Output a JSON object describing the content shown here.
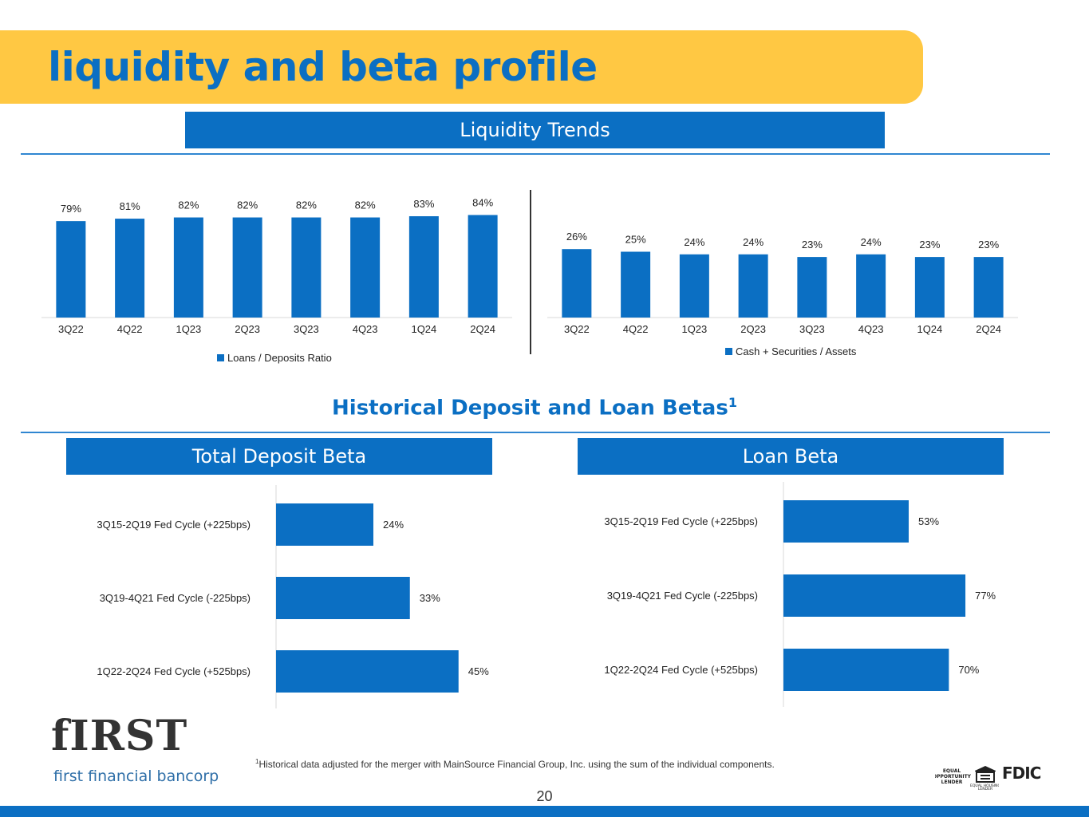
{
  "page": {
    "title": "liquidity and beta profile",
    "section1_title": "Liquidity Trends",
    "section2_title": "Historical Deposit and Loan Betas",
    "section2_sup": "1",
    "footnote_sup": "1",
    "footnote": "Historical data adjusted for the merger with MainSource Financial Group, Inc. using the sum of the individual components.",
    "page_number": "20",
    "logo_word": "fIRST",
    "logo_sub": "first financial bancorp",
    "eol_label": "EQUAL OPPORTUNITY LENDER",
    "equal_housing_label": "EQUAL HOUSING LENDER",
    "fdic_label": "FDIC",
    "colors": {
      "brand_blue": "#0B6FC3",
      "title_band": "#FFC843"
    }
  },
  "chart_data": [
    {
      "type": "bar",
      "categories": [
        "3Q22",
        "4Q22",
        "1Q23",
        "2Q23",
        "3Q23",
        "4Q23",
        "1Q24",
        "2Q24"
      ],
      "series": [
        {
          "name": "Loans / Deposits Ratio",
          "values": [
            79,
            81,
            82,
            82,
            82,
            82,
            83,
            84
          ]
        }
      ],
      "data_labels": [
        "79%",
        "81%",
        "82%",
        "82%",
        "82%",
        "82%",
        "83%",
        "84%"
      ],
      "ylim": [
        0,
        100
      ],
      "legend": "bottom",
      "grid": false
    },
    {
      "type": "bar",
      "categories": [
        "3Q22",
        "4Q22",
        "1Q23",
        "2Q23",
        "3Q23",
        "4Q23",
        "1Q24",
        "2Q24"
      ],
      "series": [
        {
          "name": "Cash + Securities / Assets",
          "values": [
            26,
            25,
            24,
            24,
            23,
            24,
            23,
            23
          ]
        }
      ],
      "data_labels": [
        "26%",
        "25%",
        "24%",
        "24%",
        "23%",
        "24%",
        "23%",
        "23%"
      ],
      "ylim": [
        0,
        30
      ],
      "legend": "bottom",
      "grid": false
    },
    {
      "type": "bar",
      "orientation": "horizontal",
      "title": "Total Deposit Beta",
      "categories": [
        "3Q15-2Q19 Fed Cycle (+225bps)",
        "3Q19-4Q21 Fed Cycle (-225bps)",
        "1Q22-2Q24 Fed Cycle (+525bps)"
      ],
      "values": [
        24,
        33,
        45
      ],
      "data_labels": [
        "24%",
        "33%",
        "45%"
      ],
      "xlim": [
        0,
        50
      ],
      "grid": false
    },
    {
      "type": "bar",
      "orientation": "horizontal",
      "title": "Loan Beta",
      "categories": [
        "3Q15-2Q19 Fed Cycle (+225bps)",
        "3Q19-4Q21 Fed Cycle (-225bps)",
        "1Q22-2Q24 Fed Cycle (+525bps)"
      ],
      "values": [
        53,
        77,
        70
      ],
      "data_labels": [
        "53%",
        "77%",
        "70%"
      ],
      "xlim": [
        0,
        90
      ],
      "grid": false
    }
  ]
}
